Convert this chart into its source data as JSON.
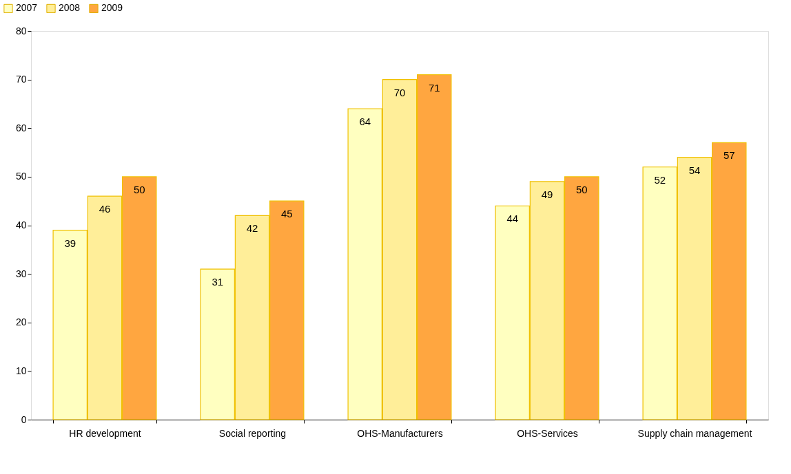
{
  "chart_data": {
    "type": "bar",
    "categories": [
      "HR development",
      "Social reporting",
      "OHS-Manufacturers",
      "OHS-Services",
      "Supply chain management"
    ],
    "series": [
      {
        "name": "2007",
        "color": "#ffffc0",
        "values": [
          39,
          31,
          64,
          44,
          52
        ]
      },
      {
        "name": "2008",
        "color": "#ffee99",
        "values": [
          46,
          42,
          70,
          49,
          54
        ]
      },
      {
        "name": "2009",
        "color": "#ffa640",
        "values": [
          50,
          45,
          71,
          50,
          57
        ]
      }
    ],
    "ylim": [
      0,
      80
    ],
    "yticks": [
      0,
      10,
      20,
      30,
      40,
      50,
      60,
      70,
      80
    ],
    "data_labels": true,
    "legend": "top left",
    "grid": false
  }
}
